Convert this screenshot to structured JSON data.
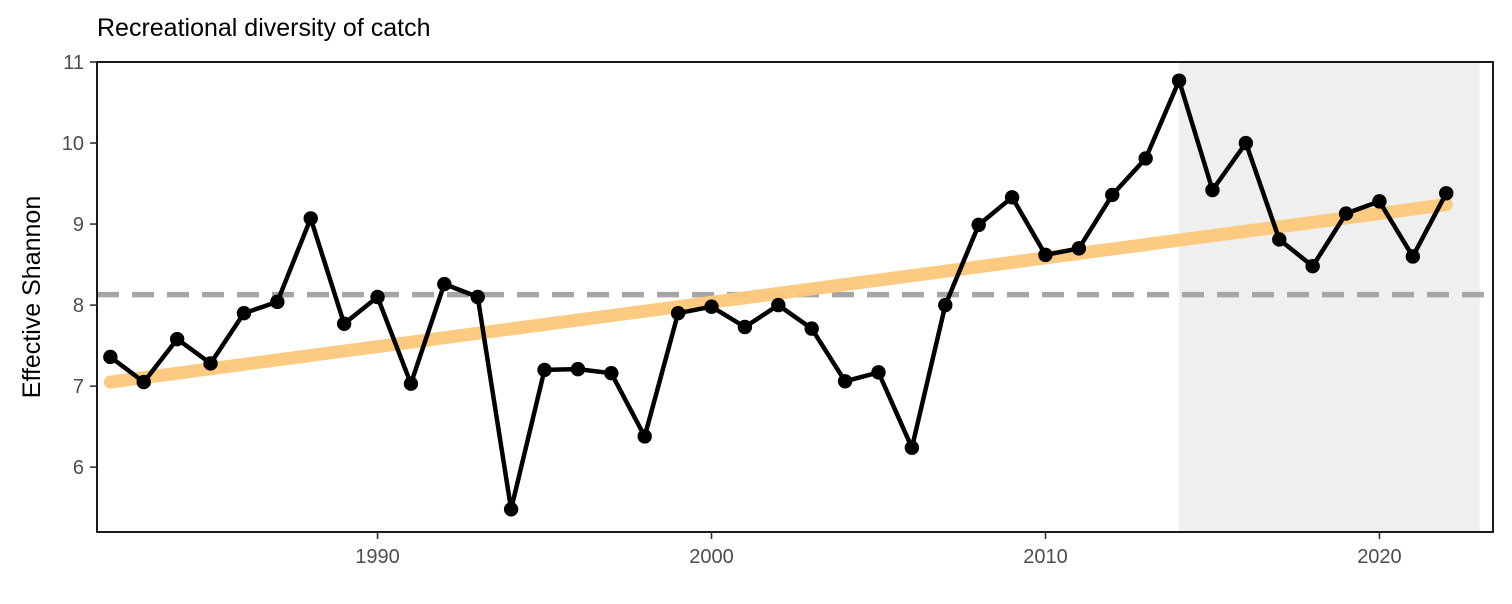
{
  "chart_data": {
    "type": "line",
    "title": "Recreational diversity of catch",
    "xlabel": "",
    "ylabel": "Effective Shannon",
    "xlim": [
      1981.6,
      2023.4
    ],
    "ylim": [
      5.2,
      11.0
    ],
    "x_ticks": [
      1990,
      2000,
      2010,
      2020
    ],
    "y_ticks": [
      6,
      7,
      8,
      9,
      10,
      11
    ],
    "grid": false,
    "series": [
      {
        "color": "#000000",
        "x": [
          1982,
          1983,
          1984,
          1985,
          1986,
          1987,
          1988,
          1989,
          1990,
          1991,
          1992,
          1993,
          1994,
          1995,
          1996,
          1997,
          1998,
          1999,
          2000,
          2001,
          2002,
          2003,
          2004,
          2005,
          2006,
          2007,
          2008,
          2009,
          2010,
          2011,
          2012,
          2013,
          2014,
          2015,
          2016,
          2017,
          2018,
          2019,
          2020,
          2021,
          2022
        ],
        "values": [
          7.36,
          7.05,
          7.58,
          7.28,
          7.9,
          8.04,
          9.07,
          7.77,
          8.1,
          7.03,
          8.26,
          8.1,
          5.48,
          7.2,
          7.21,
          7.16,
          6.38,
          7.9,
          7.98,
          7.73,
          8.0,
          7.71,
          7.06,
          7.17,
          6.24,
          8.0,
          8.99,
          9.33,
          8.62,
          8.7,
          9.36,
          9.81,
          10.77,
          9.42,
          10.0,
          8.81,
          8.48,
          9.13,
          9.28,
          8.6,
          9.38
        ]
      }
    ],
    "trend_line": {
      "color": "#fdc77a",
      "x": [
        1982,
        2022
      ],
      "values": [
        7.05,
        9.24
      ]
    },
    "mean_line": {
      "color": "#a6a6a6",
      "value": 8.13
    },
    "shaded_region": {
      "color": "#efefef",
      "x": [
        2014,
        2023
      ]
    }
  }
}
